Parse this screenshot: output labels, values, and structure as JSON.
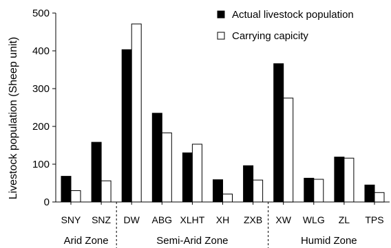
{
  "chart_data": {
    "type": "bar",
    "title": "",
    "xlabel": "",
    "ylabel": "Livestock population (Sheep unit)",
    "ylim": [
      0,
      500
    ],
    "yticks": [
      0,
      100,
      200,
      300,
      400,
      500
    ],
    "categories": [
      "SNY",
      "SNZ",
      "DW",
      "ABG",
      "XLHT",
      "XH",
      "ZXB",
      "XW",
      "WLG",
      "ZL",
      "TPS"
    ],
    "series": [
      {
        "name": "Actual livestock population",
        "color": "#000000",
        "values": [
          68,
          158,
          403,
          235,
          130,
          59,
          96,
          366,
          63,
          119,
          45
        ]
      },
      {
        "name": "Carrying capicity",
        "color": "#ffffff",
        "values": [
          30,
          56,
          471,
          183,
          153,
          21,
          58,
          275,
          60,
          116,
          25
        ]
      }
    ],
    "zones": [
      {
        "label": "Arid Zone",
        "categories": [
          "SNY",
          "SNZ"
        ]
      },
      {
        "label": "Semi-Arid Zone",
        "categories": [
          "DW",
          "ABG",
          "XLHT",
          "XH",
          "ZXB"
        ]
      },
      {
        "label": "Humid Zone",
        "categories": [
          "XW",
          "WLG",
          "ZL",
          "TPS"
        ]
      }
    ],
    "legend_position": "top-right",
    "grid": false
  }
}
